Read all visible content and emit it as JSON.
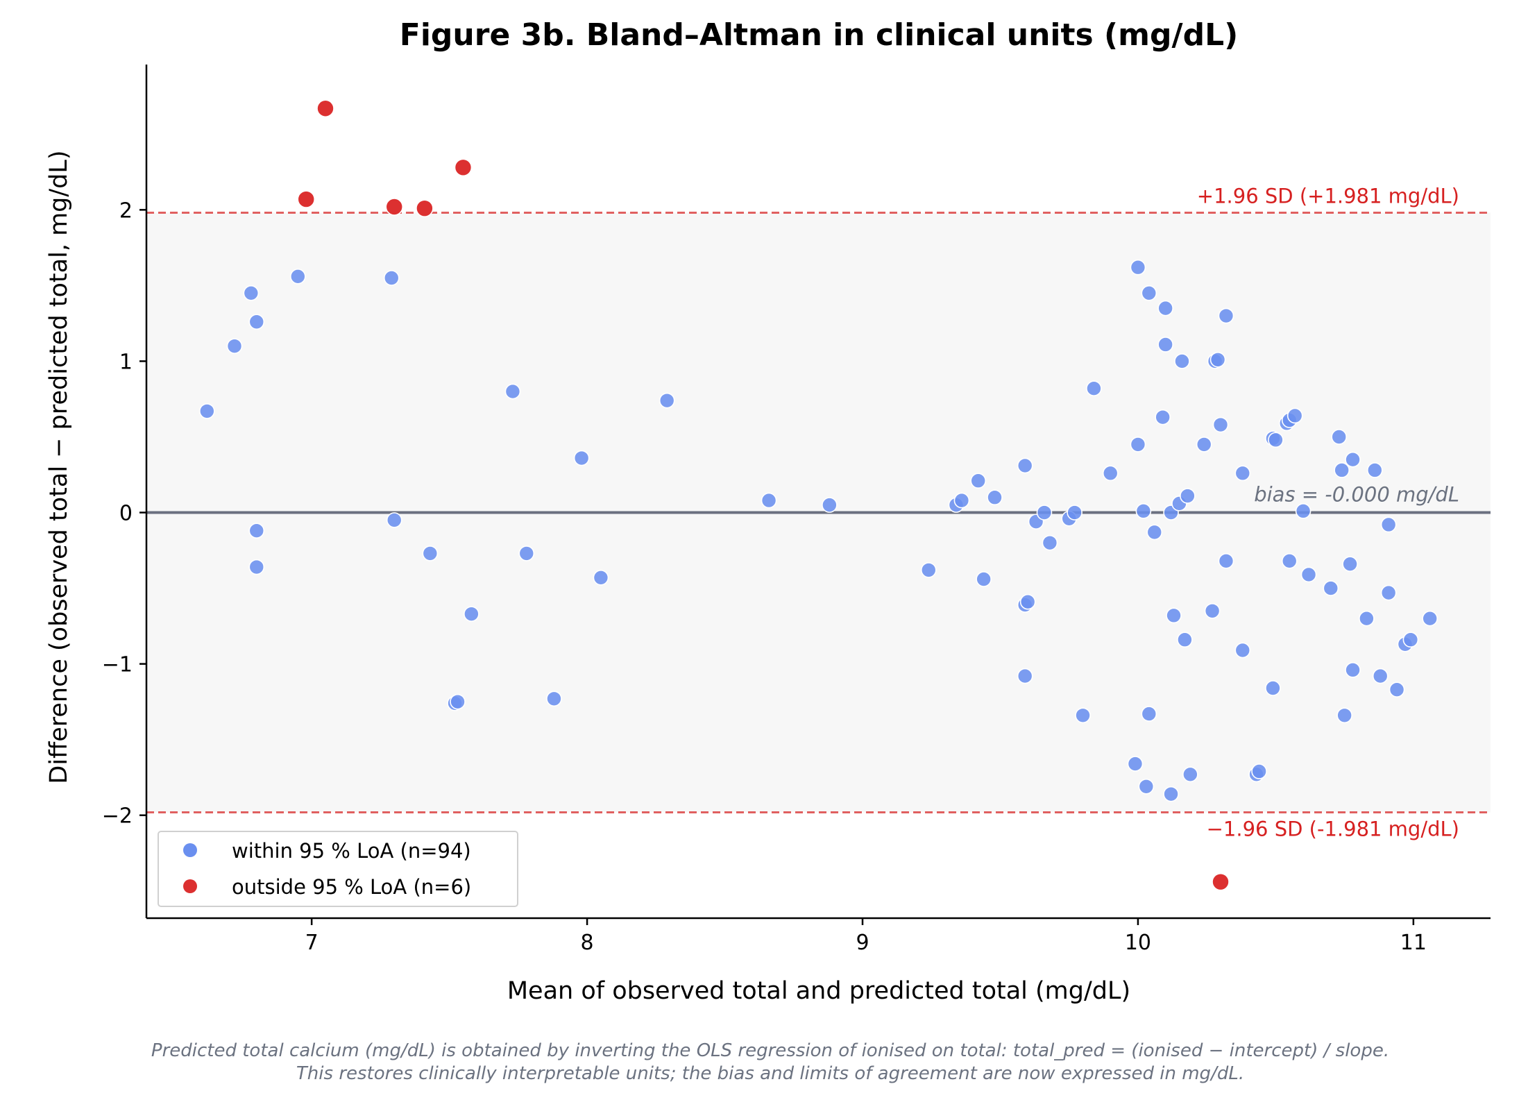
{
  "chart_data": {
    "type": "scatter",
    "title": "Figure 3b.  Bland–Altman in clinical units (mg/dL)",
    "xlabel": "Mean of observed total and predicted total (mg/dL)",
    "ylabel": "Difference  (observed total − predicted total, mg/dL)",
    "xlim": [
      6.4,
      11.28
    ],
    "ylim": [
      -2.68,
      2.96
    ],
    "xticks": [
      7,
      8,
      9,
      10,
      11
    ],
    "xtick_labels": [
      "7",
      "8",
      "9",
      "10",
      "11"
    ],
    "yticks": [
      -2,
      -1,
      0,
      1,
      2
    ],
    "ytick_labels": [
      "−2",
      "−1",
      "0",
      "1",
      "2"
    ],
    "grid": false,
    "legend_position": "lower-left",
    "bias": 0.0,
    "upper_loa": 1.981,
    "lower_loa": -1.981,
    "bias_label": "bias = -0.000 mg/dL",
    "upper_label": "+1.96 SD  (+1.981 mg/dL)",
    "lower_label": "−1.96 SD  (-1.981 mg/dL)",
    "colors": {
      "within": "#6a8fef",
      "outside": "#dc3030",
      "loa_line": "#e06060",
      "loa_text": "#d62020",
      "bias_line": "#6b7080",
      "bias_text": "#6b7280",
      "band": "#f7f7f7"
    },
    "series": [
      {
        "name": "within 95 % LoA (n=94)",
        "points": [
          [
            6.62,
            0.67
          ],
          [
            6.72,
            1.1
          ],
          [
            6.78,
            1.45
          ],
          [
            6.8,
            1.26
          ],
          [
            6.8,
            -0.12
          ],
          [
            6.8,
            -0.36
          ],
          [
            6.95,
            1.56
          ],
          [
            7.29,
            1.55
          ],
          [
            7.3,
            -0.05
          ],
          [
            7.43,
            -0.27
          ],
          [
            7.52,
            -1.26
          ],
          [
            7.53,
            -1.25
          ],
          [
            7.58,
            -0.67
          ],
          [
            7.73,
            0.8
          ],
          [
            7.78,
            -0.27
          ],
          [
            7.88,
            -1.23
          ],
          [
            7.98,
            0.36
          ],
          [
            8.05,
            -0.43
          ],
          [
            8.29,
            0.74
          ],
          [
            8.66,
            0.08
          ],
          [
            8.88,
            0.05
          ],
          [
            9.24,
            -0.38
          ],
          [
            9.34,
            0.05
          ],
          [
            9.36,
            0.08
          ],
          [
            9.42,
            0.21
          ],
          [
            9.44,
            -0.44
          ],
          [
            9.48,
            0.1
          ],
          [
            9.59,
            0.31
          ],
          [
            9.59,
            -0.61
          ],
          [
            9.6,
            -0.59
          ],
          [
            9.59,
            -1.08
          ],
          [
            9.63,
            -0.06
          ],
          [
            9.66,
            0.0
          ],
          [
            9.68,
            -0.2
          ],
          [
            9.75,
            -0.04
          ],
          [
            9.77,
            0.0
          ],
          [
            9.8,
            -1.34
          ],
          [
            9.84,
            0.82
          ],
          [
            9.9,
            0.26
          ],
          [
            10.0,
            1.62
          ],
          [
            10.04,
            1.45
          ],
          [
            10.1,
            1.35
          ],
          [
            10.1,
            1.11
          ],
          [
            10.16,
            1.0
          ],
          [
            10.28,
            1.0
          ],
          [
            10.29,
            1.01
          ],
          [
            10.32,
            1.3
          ],
          [
            10.09,
            0.63
          ],
          [
            10.0,
            0.45
          ],
          [
            10.24,
            0.45
          ],
          [
            10.3,
            0.58
          ],
          [
            10.02,
            0.01
          ],
          [
            10.12,
            0.0
          ],
          [
            10.15,
            0.06
          ],
          [
            10.18,
            0.11
          ],
          [
            10.06,
            -0.13
          ],
          [
            10.32,
            -0.32
          ],
          [
            10.13,
            -0.68
          ],
          [
            10.27,
            -0.65
          ],
          [
            10.17,
            -0.84
          ],
          [
            10.04,
            -1.33
          ],
          [
            9.99,
            -1.66
          ],
          [
            10.03,
            -1.81
          ],
          [
            10.12,
            -1.86
          ],
          [
            10.19,
            -1.73
          ],
          [
            10.38,
            0.26
          ],
          [
            10.38,
            -0.91
          ],
          [
            10.43,
            -1.73
          ],
          [
            10.44,
            -1.71
          ],
          [
            10.49,
            0.49
          ],
          [
            10.5,
            0.48
          ],
          [
            10.54,
            0.59
          ],
          [
            10.55,
            0.61
          ],
          [
            10.57,
            0.64
          ],
          [
            10.6,
            0.01
          ],
          [
            10.55,
            -0.32
          ],
          [
            10.62,
            -0.41
          ],
          [
            10.49,
            -1.16
          ],
          [
            10.7,
            -0.5
          ],
          [
            10.73,
            0.5
          ],
          [
            10.74,
            0.28
          ],
          [
            10.78,
            0.35
          ],
          [
            10.77,
            -0.34
          ],
          [
            10.83,
            -0.7
          ],
          [
            10.86,
            0.28
          ],
          [
            10.91,
            -0.08
          ],
          [
            10.91,
            -0.53
          ],
          [
            10.94,
            -1.17
          ],
          [
            10.97,
            -0.87
          ],
          [
            10.99,
            -0.84
          ],
          [
            11.06,
            -0.7
          ],
          [
            10.75,
            -1.34
          ],
          [
            10.78,
            -1.04
          ],
          [
            10.88,
            -1.08
          ]
        ]
      },
      {
        "name": "outside 95 % LoA (n=6)",
        "points": [
          [
            6.98,
            2.07
          ],
          [
            7.05,
            2.67
          ],
          [
            7.3,
            2.02
          ],
          [
            7.41,
            2.01
          ],
          [
            7.55,
            2.28
          ],
          [
            10.3,
            -2.44
          ]
        ]
      }
    ]
  },
  "footnote": {
    "line1": "Predicted total calcium (mg/dL) is obtained by inverting the OLS regression of ionised on total: total_pred = (ionised − intercept) / slope.",
    "line2": "This restores clinically interpretable units; the bias and limits of agreement are now expressed in mg/dL."
  }
}
